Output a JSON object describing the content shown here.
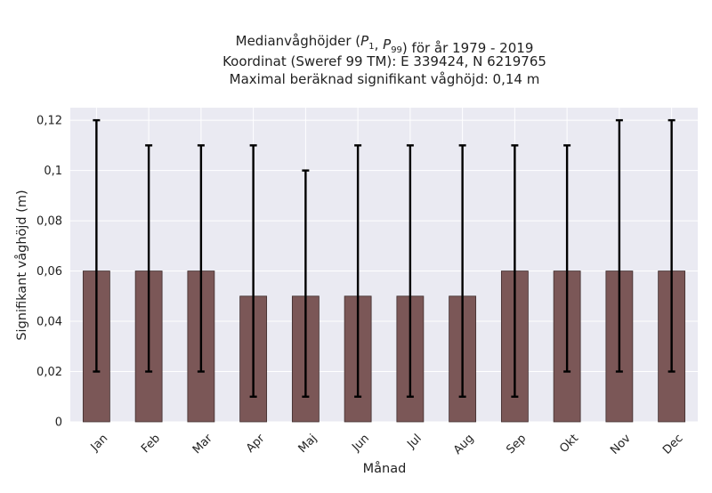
{
  "chart_data": {
    "type": "bar",
    "title_lines": [
      "Medianvåghöjder (P1, P99) för år 1979 - 2019",
      "Koordinat (Sweref 99 TM): E 339424, N 6219765",
      "Maximal beräknad signifikant våghöjd: 0,14 m"
    ],
    "xlabel": "Månad",
    "ylabel": "Signifikant våghöjd (m)",
    "categories": [
      "Jan",
      "Feb",
      "Mar",
      "Apr",
      "Maj",
      "Jun",
      "Jul",
      "Aug",
      "Sep",
      "Okt",
      "Nov",
      "Dec"
    ],
    "values": [
      0.06,
      0.06,
      0.06,
      0.05,
      0.05,
      0.05,
      0.05,
      0.05,
      0.06,
      0.06,
      0.06,
      0.06
    ],
    "p1": [
      0.02,
      0.02,
      0.02,
      0.01,
      0.01,
      0.01,
      0.01,
      0.01,
      0.01,
      0.02,
      0.02,
      0.02
    ],
    "p99": [
      0.12,
      0.11,
      0.11,
      0.11,
      0.1,
      0.11,
      0.11,
      0.11,
      0.11,
      0.11,
      0.12,
      0.12
    ],
    "ylim": [
      0,
      0.125
    ],
    "yticks": [
      0,
      0.02,
      0.04,
      0.06,
      0.08,
      0.1,
      0.12
    ],
    "ytick_labels": [
      "0",
      "0,02",
      "0,04",
      "0,06",
      "0,08",
      "0,1",
      "0,12"
    ],
    "grid": true,
    "colors": {
      "bar_fill": "#7b5757",
      "bar_edge": "#3e2c2c",
      "error_bar": "#000000",
      "plot_background": "#eaeaf2",
      "grid": "#ffffff"
    }
  }
}
